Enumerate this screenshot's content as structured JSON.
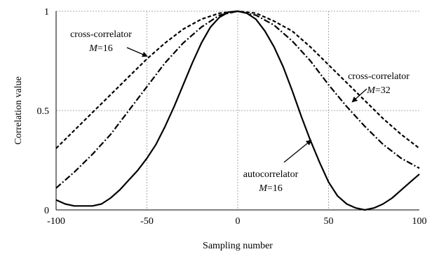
{
  "chart_data": {
    "type": "line",
    "xlabel": "Sampling number",
    "ylabel": "Correlation value",
    "xlim": [
      -100,
      100
    ],
    "ylim": [
      0,
      1
    ],
    "x_ticks": [
      "-100",
      "-50",
      "0",
      "50",
      "100"
    ],
    "y_ticks": [
      "0",
      "0.5",
      "1"
    ],
    "grid": "horizontal dotted at 0.5 and 1; vertical dotted at -50, 0, 50",
    "series": [
      {
        "line_style": "solid",
        "x": [
          -100,
          -95,
          -90,
          -85,
          -80,
          -75,
          -70,
          -65,
          -60,
          -55,
          -50,
          -45,
          -40,
          -35,
          -30,
          -25,
          -20,
          -15,
          -10,
          -5,
          0,
          5,
          10,
          15,
          20,
          25,
          30,
          35,
          40,
          45,
          50,
          55,
          60,
          65,
          70,
          75,
          80,
          85,
          90,
          95,
          100
        ],
        "y": [
          0.05,
          0.03,
          0.02,
          0.02,
          0.02,
          0.03,
          0.06,
          0.1,
          0.15,
          0.2,
          0.26,
          0.33,
          0.42,
          0.52,
          0.63,
          0.74,
          0.84,
          0.92,
          0.97,
          0.995,
          1.0,
          0.99,
          0.96,
          0.9,
          0.82,
          0.72,
          0.6,
          0.47,
          0.35,
          0.24,
          0.14,
          0.07,
          0.03,
          0.01,
          0.0,
          0.01,
          0.03,
          0.06,
          0.1,
          0.14,
          0.18
        ]
      },
      {
        "line_style": "dashed",
        "x": [
          -100,
          -90,
          -80,
          -70,
          -60,
          -50,
          -40,
          -30,
          -20,
          -10,
          0,
          10,
          20,
          30,
          40,
          50,
          60,
          70,
          80,
          90,
          100
        ],
        "y": [
          0.31,
          0.4,
          0.49,
          0.58,
          0.67,
          0.76,
          0.84,
          0.91,
          0.96,
          0.99,
          1.0,
          0.99,
          0.95,
          0.9,
          0.82,
          0.73,
          0.64,
          0.55,
          0.46,
          0.38,
          0.31
        ]
      },
      {
        "line_style": "dash-dot",
        "x": [
          -100,
          -90,
          -80,
          -70,
          -60,
          -50,
          -40,
          -30,
          -20,
          -10,
          0,
          10,
          20,
          30,
          40,
          50,
          60,
          70,
          80,
          90,
          100
        ],
        "y": [
          0.11,
          0.19,
          0.28,
          0.38,
          0.5,
          0.62,
          0.74,
          0.84,
          0.92,
          0.98,
          1.0,
          0.98,
          0.93,
          0.85,
          0.75,
          0.63,
          0.52,
          0.42,
          0.33,
          0.26,
          0.21
        ]
      }
    ],
    "annotations": [
      {
        "line1": "cross-correlator",
        "line2_prefix": "M",
        "line2_suffix": "=16"
      },
      {
        "line1": "cross-correlator",
        "line2_prefix": "M",
        "line2_suffix": "=32"
      },
      {
        "line1": "autocorrelator",
        "line2_prefix": "M",
        "line2_suffix": "=16"
      }
    ]
  }
}
